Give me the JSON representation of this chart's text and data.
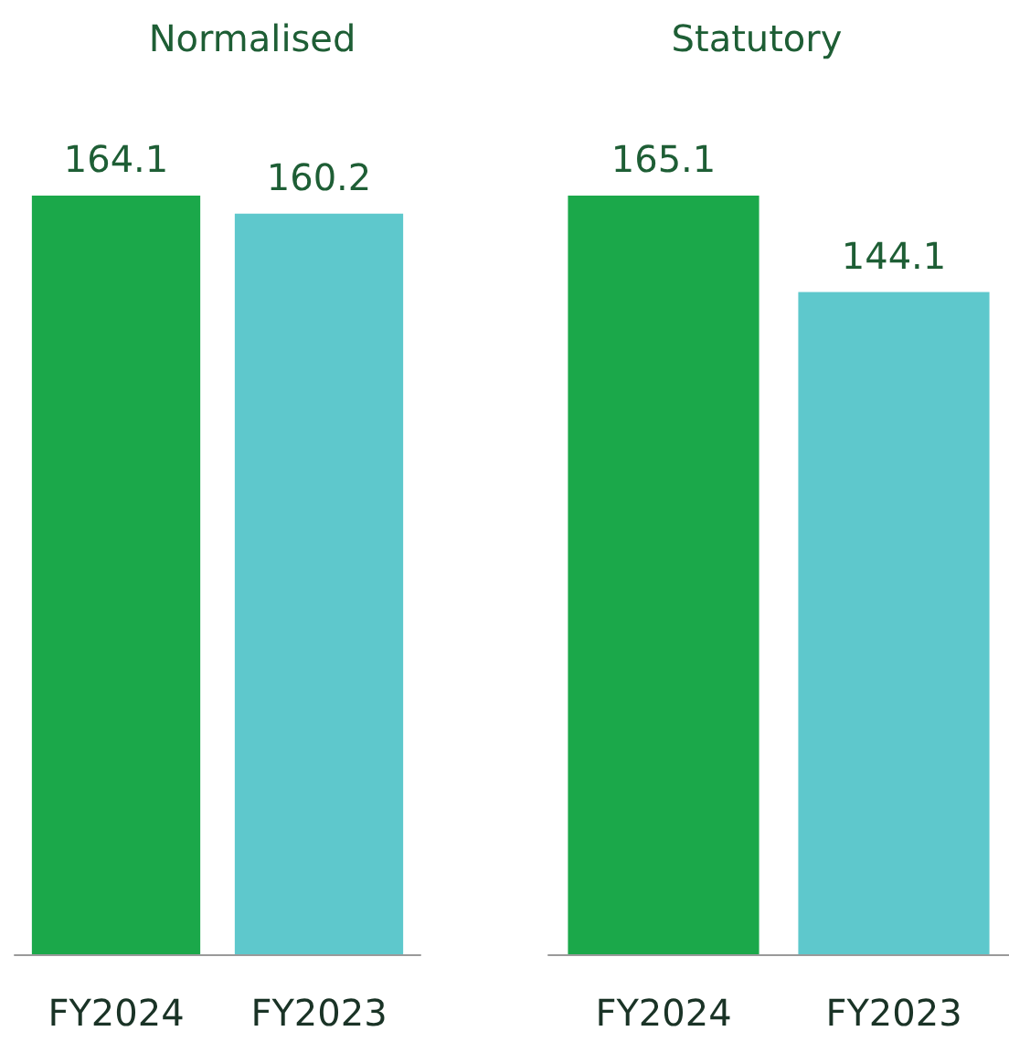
{
  "chart_data": [
    {
      "type": "bar",
      "title": "Normalised",
      "categories": [
        "FY2024",
        "FY2023"
      ],
      "values": [
        164.1,
        160.2
      ],
      "colors": [
        "#1ba84a",
        "#5ec8cc"
      ],
      "data_labels": true,
      "tick_labels": "x",
      "grid": false
    },
    {
      "type": "bar",
      "title": "Statutory",
      "categories": [
        "FY2024",
        "FY2023"
      ],
      "values": [
        165.1,
        144.1
      ],
      "colors": [
        "#1ba84a",
        "#5ec8cc"
      ],
      "data_labels": true,
      "tick_labels": "x",
      "grid": false
    }
  ]
}
